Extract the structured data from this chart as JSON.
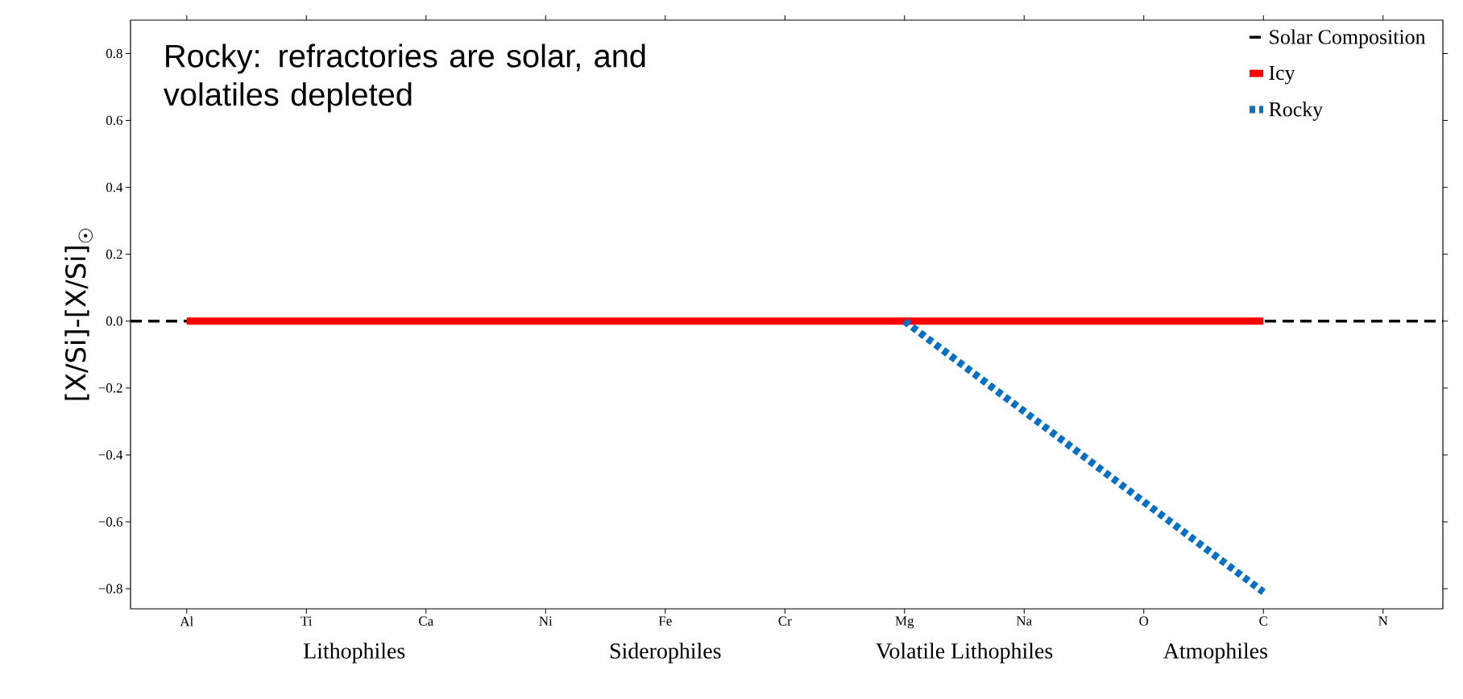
{
  "chart_data": {
    "type": "line",
    "title": "Rocky: refractories are solar, and volatiles depleted",
    "ylabel": "[X/Si]-[X/Si]$_{☉}$",
    "categories": [
      "Al",
      "Ti",
      "Ca",
      "Ni",
      "Fe",
      "Cr",
      "Mg",
      "Na",
      "O",
      "C",
      "N"
    ],
    "series": [
      {
        "name": "Icy",
        "color": "#ff0000",
        "line_style": "solid",
        "values": [
          0,
          0,
          0,
          0,
          0,
          0,
          0,
          0,
          0,
          0,
          null
        ]
      },
      {
        "name": "Rocky",
        "color": "#0070c8",
        "line_style": "dotted",
        "values": [
          null,
          null,
          null,
          null,
          null,
          null,
          0,
          -0.27,
          -0.54,
          -0.81,
          null
        ]
      }
    ],
    "ref_lines": [
      {
        "axis": "y",
        "value": 0,
        "label": "Solar Composition",
        "color": "#000000",
        "line_style": "dashed"
      }
    ],
    "annotations": [
      "Lithophiles",
      "Siderophiles",
      "Volatile Lithophiles",
      "Atmophiles"
    ],
    "ylim": [
      -0.86,
      0.9
    ],
    "yticks": [
      {
        "value": -0.8,
        "label": "−0.8"
      },
      {
        "value": -0.6,
        "label": "−0.6"
      },
      {
        "value": -0.4,
        "label": "−0.4"
      },
      {
        "value": -0.2,
        "label": "−0.2"
      },
      {
        "value": 0,
        "label": "0.0"
      },
      0.2,
      0.4,
      0.6,
      0.8
    ],
    "grid": false,
    "legend": "top right"
  }
}
